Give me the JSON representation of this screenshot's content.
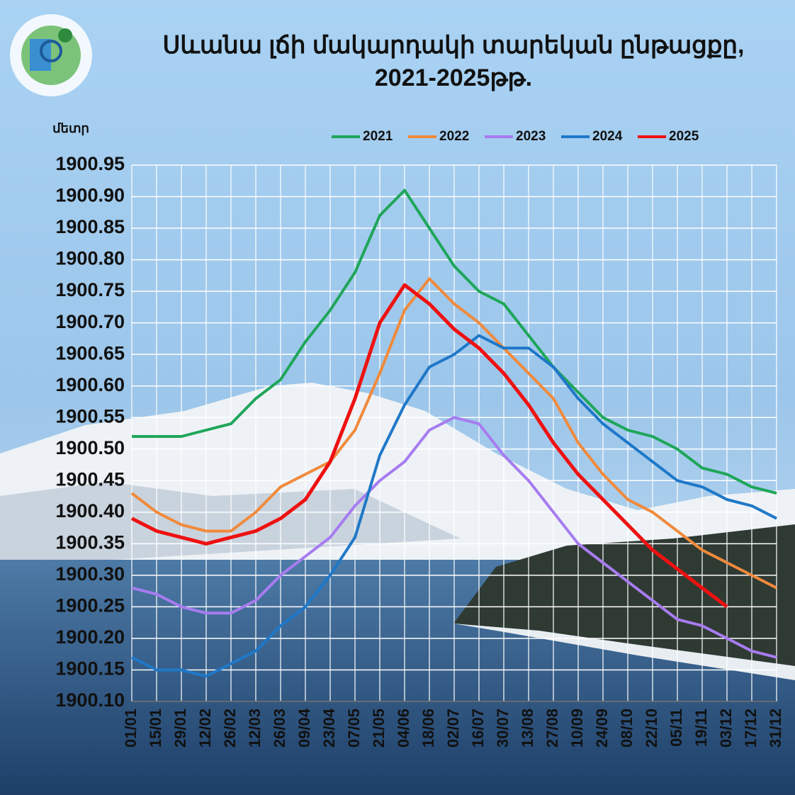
{
  "chart_data": {
    "type": "line",
    "title": "Սևանա լճի մակարդակի տարեկան ընթացքը,",
    "subtitle": "2021-2025թթ.",
    "y_label": "մետր",
    "categories": [
      "01/01",
      "15/01",
      "29/01",
      "12/02",
      "26/02",
      "12/03",
      "26/03",
      "09/04",
      "23/04",
      "07/05",
      "21/05",
      "04/06",
      "18/06",
      "02/07",
      "16/07",
      "30/07",
      "13/08",
      "27/08",
      "10/09",
      "24/09",
      "08/10",
      "22/10",
      "05/11",
      "19/11",
      "03/12",
      "17/12",
      "31/12"
    ],
    "series": [
      {
        "name": "2021",
        "color": "#1fa65a",
        "values": [
          1900.52,
          1900.52,
          1900.52,
          1900.53,
          1900.54,
          1900.58,
          1900.61,
          1900.67,
          1900.72,
          1900.78,
          1900.87,
          1900.91,
          1900.85,
          1900.79,
          1900.75,
          1900.73,
          1900.68,
          1900.63,
          1900.59,
          1900.55,
          1900.53,
          1900.52,
          1900.5,
          1900.47,
          1900.46,
          1900.44,
          1900.43
        ]
      },
      {
        "name": "2022",
        "color": "#f08a3c",
        "values": [
          1900.43,
          1900.4,
          1900.38,
          1900.37,
          1900.37,
          1900.4,
          1900.44,
          1900.46,
          1900.48,
          1900.53,
          1900.62,
          1900.72,
          1900.77,
          1900.73,
          1900.7,
          1900.66,
          1900.62,
          1900.58,
          1900.51,
          1900.46,
          1900.42,
          1900.4,
          1900.37,
          1900.34,
          1900.32,
          1900.3,
          1900.28
        ]
      },
      {
        "name": "2023",
        "color": "#a77cf0",
        "values": [
          1900.28,
          1900.27,
          1900.25,
          1900.24,
          1900.24,
          1900.26,
          1900.3,
          1900.33,
          1900.36,
          1900.41,
          1900.45,
          1900.48,
          1900.53,
          1900.55,
          1900.54,
          1900.49,
          1900.45,
          1900.4,
          1900.35,
          1900.32,
          1900.29,
          1900.26,
          1900.23,
          1900.22,
          1900.2,
          1900.18,
          1900.17
        ]
      },
      {
        "name": "2024",
        "color": "#1f78c8",
        "values": [
          1900.17,
          1900.15,
          1900.15,
          1900.14,
          1900.16,
          1900.18,
          1900.22,
          1900.25,
          1900.3,
          1900.36,
          1900.49,
          1900.57,
          1900.63,
          1900.65,
          1900.68,
          1900.66,
          1900.66,
          1900.63,
          1900.58,
          1900.54,
          1900.51,
          1900.48,
          1900.45,
          1900.44,
          1900.42,
          1900.41,
          1900.39
        ]
      },
      {
        "name": "2025",
        "color": "#ee1111",
        "values": [
          1900.39,
          1900.37,
          1900.36,
          1900.35,
          1900.36,
          1900.37,
          1900.39,
          1900.42,
          1900.48,
          1900.58,
          1900.7,
          1900.76,
          1900.73,
          1900.69,
          1900.66,
          1900.62,
          1900.57,
          1900.51,
          1900.46,
          1900.42,
          1900.38,
          1900.34,
          1900.31,
          1900.28,
          1900.25,
          null,
          null
        ]
      }
    ],
    "ylim": [
      1900.1,
      1900.95
    ],
    "yticks": [
      1900.95,
      {
        "value": 1900.9,
        "label": "1900.90"
      },
      1900.85,
      {
        "value": 1900.8,
        "label": "1900.80"
      },
      1900.75,
      {
        "value": 1900.7,
        "label": "1900.70"
      },
      1900.65,
      {
        "value": 1900.6,
        "label": "1900.60"
      },
      1900.55,
      {
        "value": 1900.5,
        "label": "1900.50"
      },
      1900.45,
      {
        "value": 1900.4,
        "label": "1900.40"
      },
      1900.35,
      {
        "value": 1900.3,
        "label": "1900.30"
      },
      1900.25,
      {
        "value": 1900.2,
        "label": "1900.20"
      },
      1900.15,
      {
        "value": 1900.1,
        "label": "1900.10"
      }
    ],
    "grid": true,
    "legend": "top"
  }
}
